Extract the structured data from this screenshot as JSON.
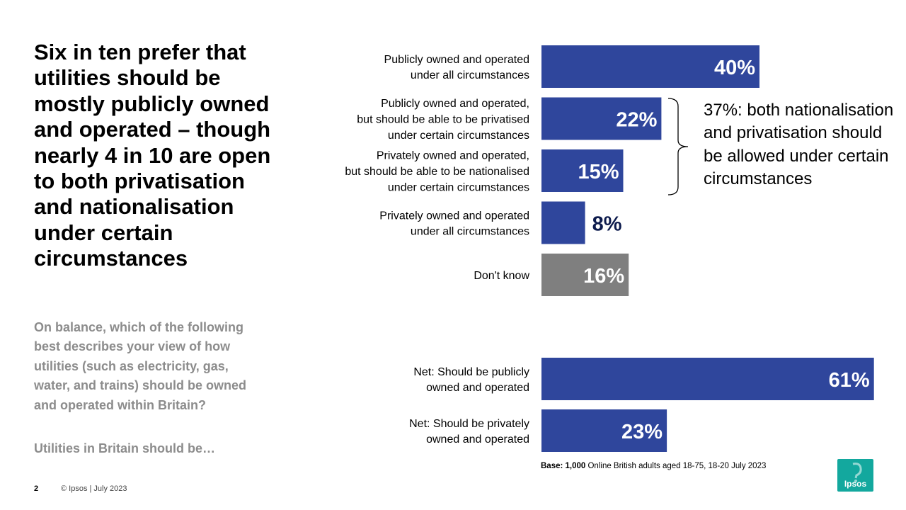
{
  "headline": "Six in ten prefer that utilities should be mostly publicly owned and operated – though nearly 4 in 10 are open to both privatisation and nationalisation under certain circumstances",
  "question": "On balance, which of the following best describes your view of how utilities (such as electricity, gas, water, and trains) should be owned and operated within Britain?",
  "question_lead": "Utilities in Britain should be…",
  "brace_annotation": "37%: both nationalisation and privatisation should be allowed under certain circumstances",
  "base_note": {
    "bold": "Base: 1,000",
    "rest": " Online British adults aged 18-75, 18-20 July 2023"
  },
  "footer": {
    "page_number": "2",
    "copyright": "© Ipsos | July 2023"
  },
  "logo": {
    "text": "Ipsos",
    "color": "#13a89e"
  },
  "colors": {
    "primary_bar": "#2f469c",
    "dont_know_bar": "#7f7f7f",
    "outside_label": "#0d1b4d",
    "inside_label": "#ffffff"
  },
  "chart_data": [
    {
      "type": "bar",
      "orientation": "horizontal",
      "categories": [
        [
          "Publicly owned and operated",
          "under all circumstances"
        ],
        [
          "Publicly owned and operated,",
          "but should be able to be privatised",
          "under certain circumstances"
        ],
        [
          "Privately owned and operated,",
          "but should be able to be nationalised",
          "under certain circumstances"
        ],
        [
          "Privately owned and operated",
          "under all circumstances"
        ],
        [
          "Don't know"
        ]
      ],
      "values": [
        40,
        22,
        15,
        8,
        16
      ],
      "value_labels": [
        "40%",
        "22%",
        "15%",
        "8%",
        "16%"
      ],
      "colors": [
        "#2f469c",
        "#2f469c",
        "#2f469c",
        "#2f469c",
        "#7f7f7f"
      ],
      "unit": "%",
      "xlim": [
        0,
        75
      ],
      "grid": false,
      "legend": "none"
    },
    {
      "type": "bar",
      "orientation": "horizontal",
      "categories": [
        [
          "Net: Should be publicly",
          "owned and operated"
        ],
        [
          "Net: Should be privately",
          "owned and operated"
        ]
      ],
      "values": [
        61,
        23
      ],
      "value_labels": [
        "61%",
        "23%"
      ],
      "colors": [
        "#2f469c",
        "#2f469c"
      ],
      "unit": "%",
      "xlim": [
        0,
        75
      ],
      "grid": false,
      "legend": "none"
    }
  ]
}
